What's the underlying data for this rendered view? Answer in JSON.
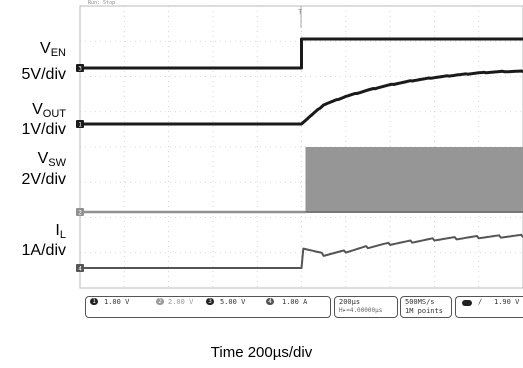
{
  "chart_data": {
    "type": "line",
    "xlabel": "Time 200µs/div",
    "channels": [
      {
        "label": "VEN",
        "label_main": "V",
        "label_sub": "EN",
        "scale": "5V/div",
        "marker": "3",
        "color": "#1a1a1a",
        "x": [
          -1.0,
          0.0,
          0.0,
          1.0
        ],
        "y": [
          0,
          0,
          5,
          5
        ]
      },
      {
        "label": "VOUT",
        "label_main": "V",
        "label_sub": "OUT",
        "scale": "1V/div",
        "marker": "1",
        "color": "#1a1a1a",
        "x": [
          -1.0,
          0.0,
          0.1,
          0.2,
          0.3,
          0.4,
          0.5,
          0.6,
          0.7,
          0.8,
          0.9,
          1.0
        ],
        "y": [
          0,
          0,
          0.9,
          1.3,
          1.6,
          1.85,
          2.05,
          2.2,
          2.32,
          2.42,
          2.48,
          2.5
        ]
      },
      {
        "label": "VSW",
        "label_main": "V",
        "label_sub": "SW",
        "scale": "2V/div",
        "marker": "2",
        "color": "#909090",
        "x": [
          -1.0,
          0.0,
          1.0
        ],
        "y_low": [
          0,
          0,
          0
        ],
        "y_high": [
          0,
          0,
          6.5
        ]
      },
      {
        "label": "IL",
        "label_main": "I",
        "label_sub": "L",
        "scale": "1A/div",
        "marker": "4",
        "color": "#555555",
        "x": [
          -1.0,
          0.0,
          0.0,
          0.1,
          0.2,
          0.3,
          0.4,
          0.5,
          0.6,
          0.7,
          0.8,
          0.9,
          1.0
        ],
        "y": [
          0,
          0,
          0.9,
          0.55,
          0.7,
          0.9,
          1.05,
          1.15,
          1.25,
          1.3,
          1.35,
          1.38,
          1.4
        ]
      }
    ]
  },
  "status_bar": {
    "ch1": "1.00 V",
    "ch2": "2.00 V",
    "ch3": "5.00 V",
    "ch4": "1.00 A",
    "timebase": "200µs",
    "position": "H▸=4.00000µs",
    "sample_rate": "500MS/s",
    "record_length": "1M points",
    "trigger_level": "1.90 V",
    "ch_numbers": [
      "1",
      "2",
      "3",
      "4"
    ]
  },
  "scope_header": "Run: Stop"
}
